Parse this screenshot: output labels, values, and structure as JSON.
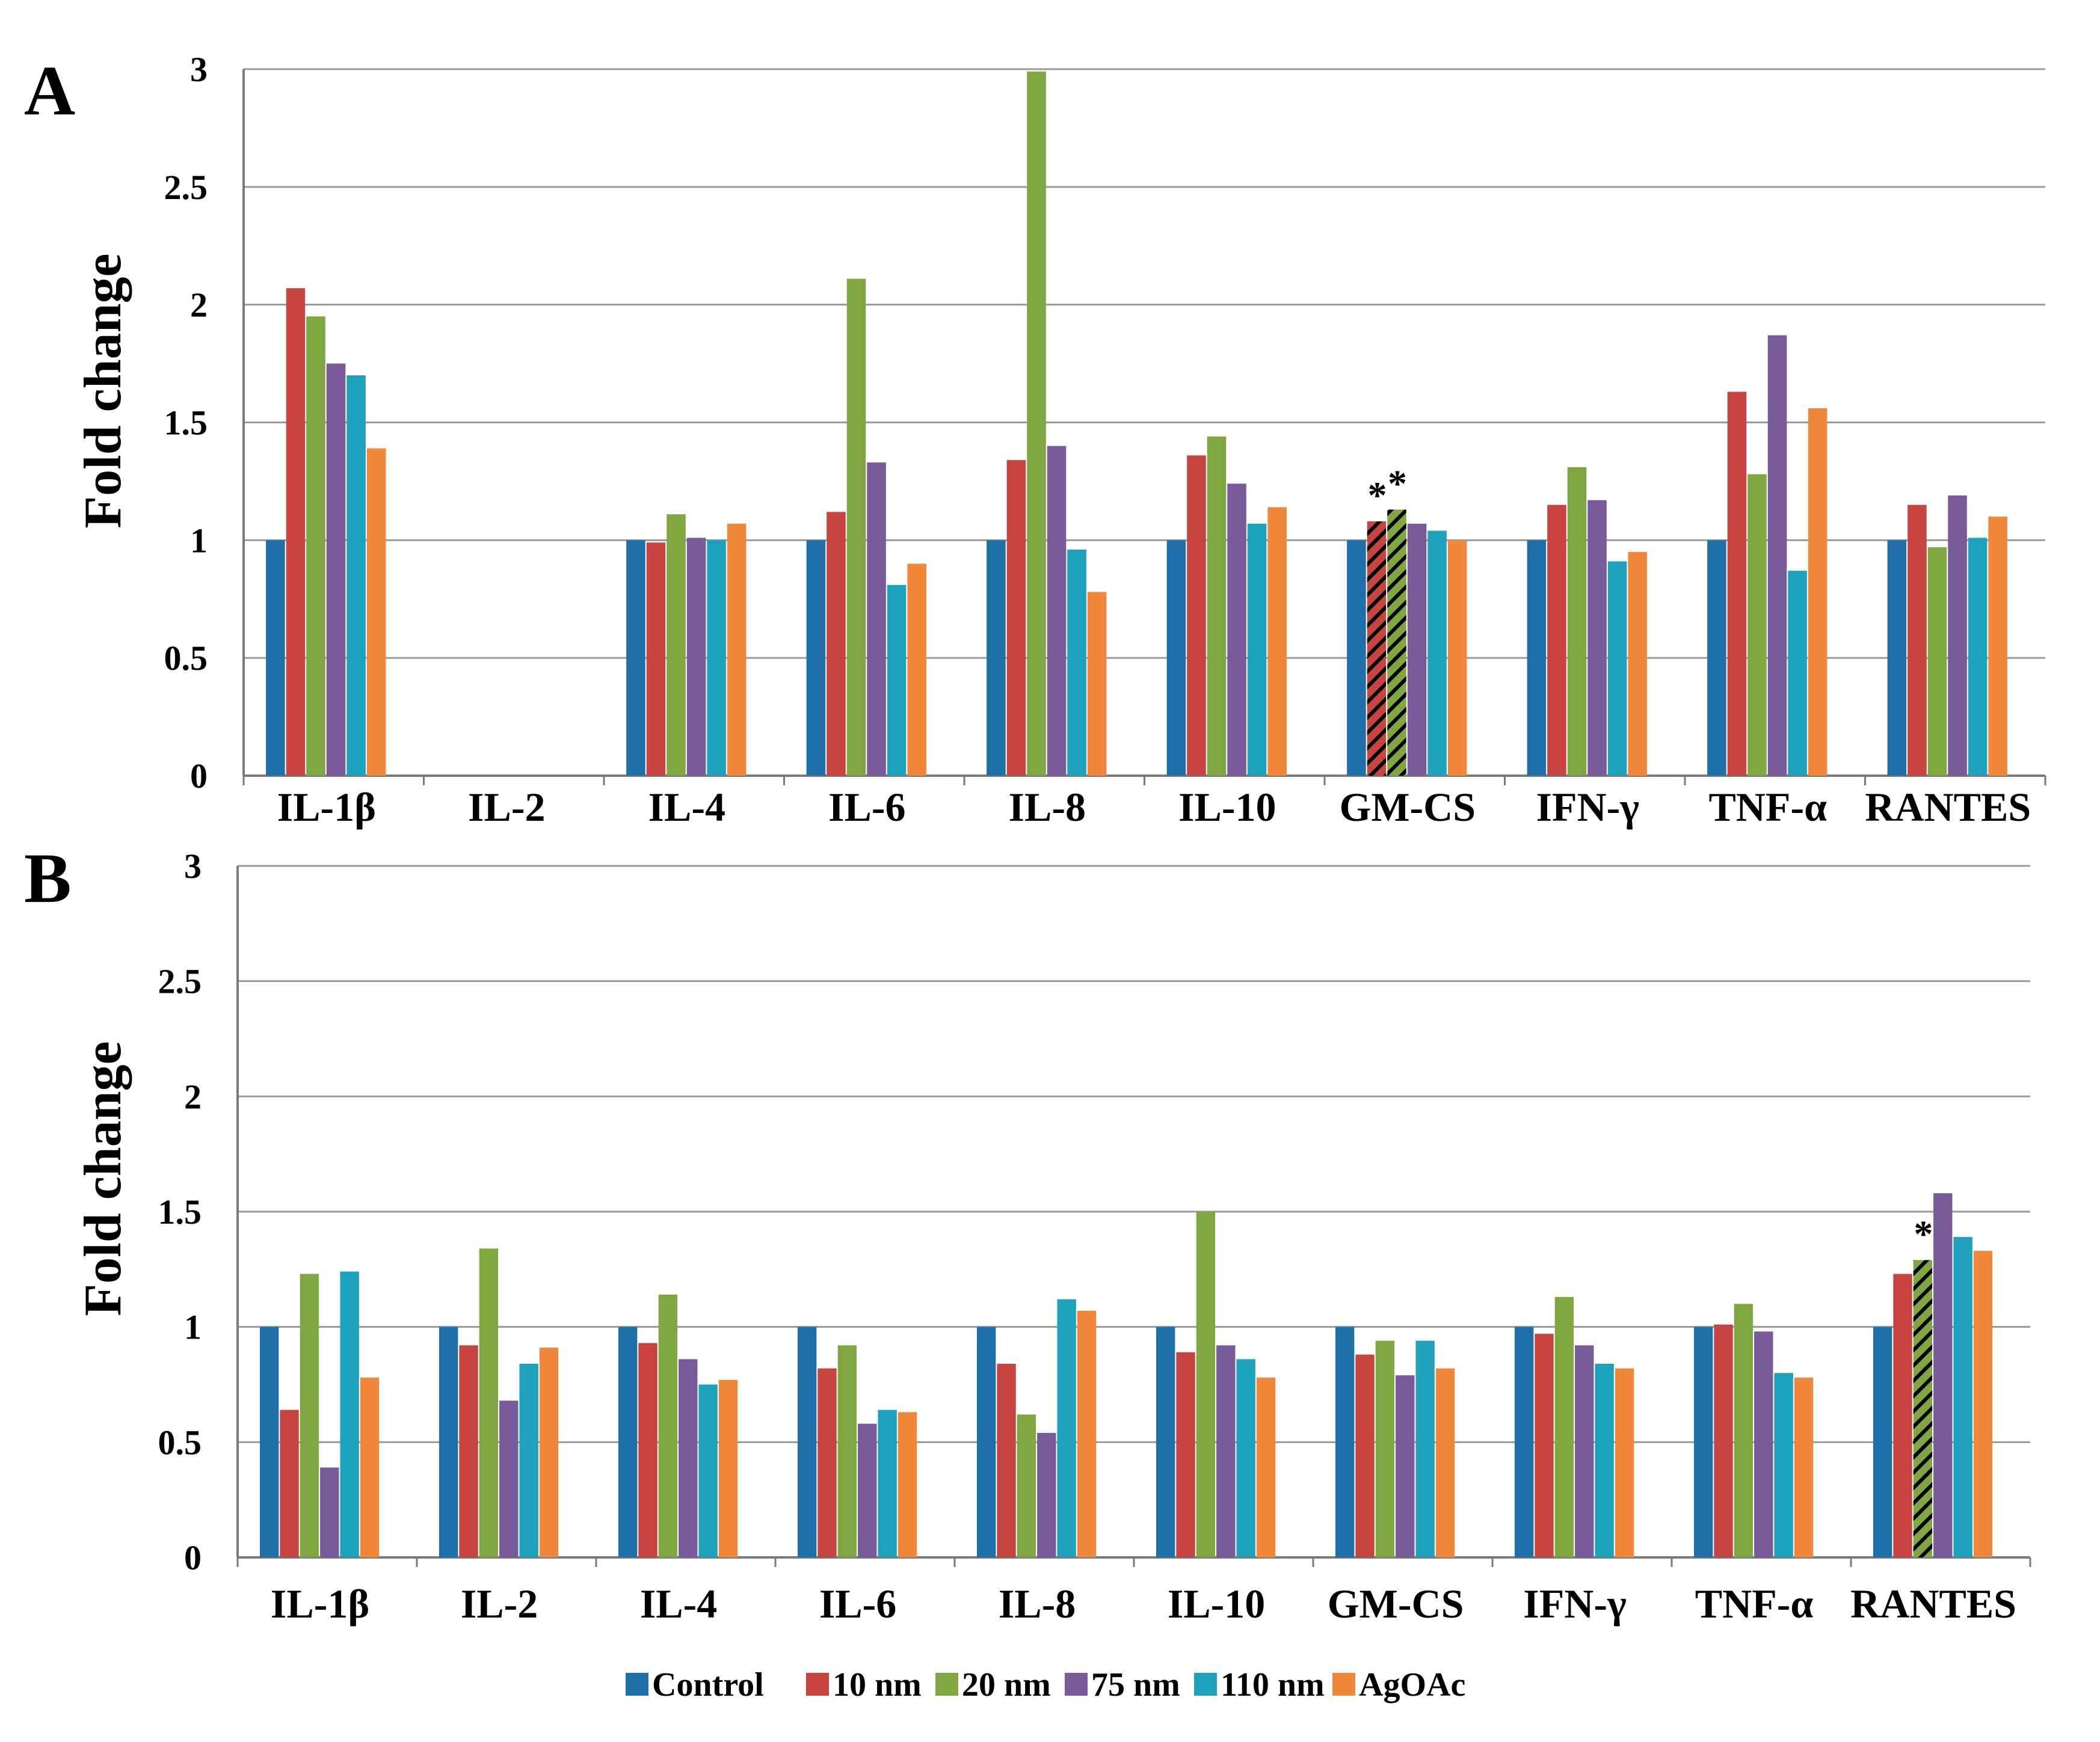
{
  "figure_colors": {
    "Control": "#1f6fa8",
    "10 nm": "#c84440",
    "20 nm": "#7fa641",
    "75 nm": "#7a5b99",
    "110 nm": "#1ea1bd",
    "AgOAc": "#f0873a",
    "grid": "#9a9a9a"
  },
  "chart_data": [
    {
      "type": "bar",
      "panel_label": "A",
      "ylabel": "Fold change",
      "ylim": [
        0,
        3
      ],
      "yticks": [
        "0",
        "0.5",
        "1",
        "1.5",
        "2",
        "2.5",
        "3"
      ],
      "grid": true,
      "categories": [
        "IL-1β",
        "IL-2",
        "IL-4",
        "IL-6",
        "IL-8",
        "IL-10",
        "GM-CS",
        "IFN-γ",
        "TNF-α",
        "RANTES"
      ],
      "series": [
        {
          "name": "Control",
          "values": [
            1.0,
            0,
            1.0,
            1.0,
            1.0,
            1.0,
            1.0,
            1.0,
            1.0,
            1.0
          ]
        },
        {
          "name": "10 nm",
          "values": [
            2.07,
            0,
            0.99,
            1.12,
            1.34,
            1.36,
            1.08,
            1.15,
            1.63,
            1.15
          ]
        },
        {
          "name": "20 nm",
          "values": [
            1.95,
            0,
            1.11,
            2.11,
            2.99,
            1.44,
            1.13,
            1.31,
            1.28,
            0.97
          ]
        },
        {
          "name": "75 nm",
          "values": [
            1.75,
            0,
            1.01,
            1.33,
            1.4,
            1.24,
            1.07,
            1.17,
            1.87,
            1.19
          ]
        },
        {
          "name": "110 nm",
          "values": [
            1.7,
            0,
            1.0,
            0.81,
            0.96,
            1.07,
            1.04,
            0.91,
            0.87,
            1.01
          ]
        },
        {
          "name": "AgOAc",
          "values": [
            1.39,
            0,
            1.07,
            0.9,
            0.78,
            1.14,
            1.0,
            0.95,
            1.56,
            1.1
          ]
        }
      ],
      "significant": [
        {
          "category": "GM-CS",
          "series": "10 nm",
          "marker": "*"
        },
        {
          "category": "GM-CS",
          "series": "20 nm",
          "marker": "*"
        }
      ]
    },
    {
      "type": "bar",
      "panel_label": "B",
      "ylabel": "Fold change",
      "ylim": [
        0,
        3
      ],
      "yticks": [
        "0",
        "0.5",
        "1",
        "1.5",
        "2",
        "2.5",
        "3"
      ],
      "grid": true,
      "categories": [
        "IL-1β",
        "IL-2",
        "IL-4",
        "IL-6",
        "IL-8",
        "IL-10",
        "GM-CS",
        "IFN-γ",
        "TNF-α",
        "RANTES"
      ],
      "series": [
        {
          "name": "Control",
          "values": [
            1.0,
            1.0,
            1.0,
            1.0,
            1.0,
            1.0,
            1.0,
            1.0,
            1.0,
            1.0
          ]
        },
        {
          "name": "10 nm",
          "values": [
            0.64,
            0.92,
            0.93,
            0.82,
            0.84,
            0.89,
            0.88,
            0.97,
            1.01,
            1.23
          ]
        },
        {
          "name": "20 nm",
          "values": [
            1.23,
            1.34,
            1.14,
            0.92,
            0.62,
            1.5,
            0.94,
            1.13,
            1.1,
            1.29
          ]
        },
        {
          "name": "75 nm",
          "values": [
            0.39,
            0.68,
            0.86,
            0.58,
            0.54,
            0.92,
            0.79,
            0.92,
            0.98,
            1.58
          ]
        },
        {
          "name": "110 nm",
          "values": [
            1.24,
            0.84,
            0.75,
            0.64,
            1.12,
            0.86,
            0.94,
            0.84,
            0.8,
            1.39
          ]
        },
        {
          "name": "AgOAc",
          "values": [
            0.78,
            0.91,
            0.77,
            0.63,
            1.07,
            0.78,
            0.82,
            0.82,
            0.78,
            1.33
          ]
        }
      ],
      "significant": [
        {
          "category": "RANTES",
          "series": "20 nm",
          "marker": "*"
        }
      ]
    }
  ],
  "legend": [
    "Control",
    "10 nm",
    "20 nm",
    "75 nm",
    "110 nm",
    "AgOAc"
  ]
}
